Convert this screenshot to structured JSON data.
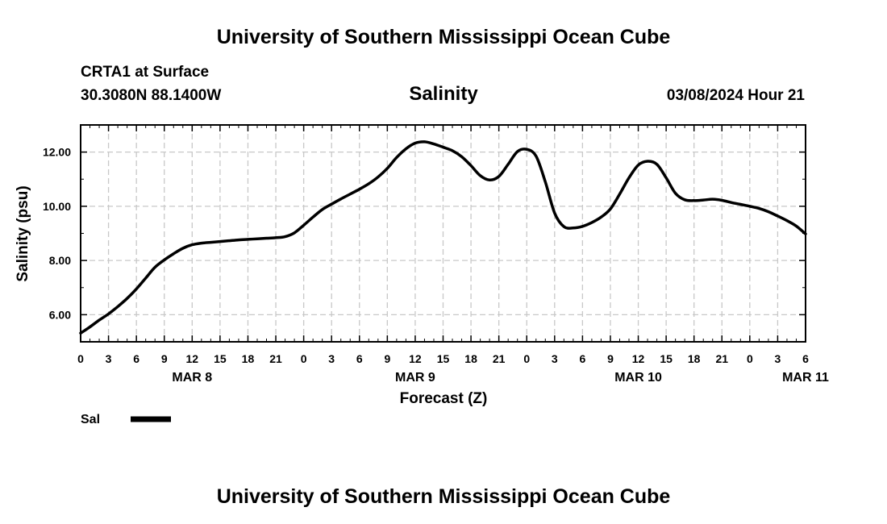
{
  "header": {
    "title": "University of Southern Mississippi Ocean Cube",
    "station": "CRTA1 at Surface",
    "coordinates": "30.3080N  88.1400W",
    "variable": "Salinity",
    "timestamp": "03/08/2024 Hour 21"
  },
  "footer": {
    "title": "University of Southern Mississippi Ocean Cube"
  },
  "legend": {
    "label": "Sal",
    "color": "#000000"
  },
  "colors": {
    "line": "#000000",
    "grid": "#c8c8c8",
    "frame": "#000000"
  },
  "chart_data": {
    "type": "line",
    "title": "Salinity",
    "xlabel": "Forecast (Z)",
    "ylabel": "Salinity (psu)",
    "xlim": [
      0,
      78
    ],
    "ylim": [
      5.0,
      13.0
    ],
    "x_unit": "hours since 2024-03-08 00Z",
    "x_tick_values": [
      0,
      3,
      6,
      9,
      12,
      15,
      18,
      21,
      24,
      27,
      30,
      33,
      36,
      39,
      42,
      45,
      48,
      51,
      54,
      57,
      60,
      63,
      66,
      69,
      72,
      75,
      78
    ],
    "x_tick_labels": [
      "0",
      "3",
      "6",
      "9",
      "12",
      "15",
      "18",
      "21",
      "0",
      "3",
      "6",
      "9",
      "12",
      "15",
      "18",
      "21",
      "0",
      "3",
      "6",
      "9",
      "12",
      "15",
      "18",
      "21",
      "0",
      "3",
      "6"
    ],
    "date_labels": [
      {
        "x": 12,
        "label": "MAR 8"
      },
      {
        "x": 36,
        "label": "MAR 9"
      },
      {
        "x": 60,
        "label": "MAR 10"
      },
      {
        "x": 78,
        "label": "MAR 11"
      }
    ],
    "y_tick_values": [
      6.0,
      8.0,
      10.0,
      12.0
    ],
    "y_tick_labels": [
      "6.00",
      "8.00",
      "10.00",
      "12.00"
    ],
    "grid": true,
    "series": [
      {
        "name": "Sal",
        "x": [
          0,
          1,
          2,
          3,
          4,
          5,
          6,
          7,
          8,
          9,
          10,
          11,
          12,
          13,
          14,
          15,
          16,
          17,
          18,
          19,
          20,
          21,
          22,
          23,
          24,
          25,
          26,
          27,
          28,
          29,
          30,
          31,
          32,
          33,
          34,
          35,
          36,
          37,
          38,
          39,
          40,
          41,
          42,
          43,
          44,
          45,
          46,
          47,
          48,
          49,
          50,
          51,
          52,
          53,
          54,
          55,
          56,
          57,
          58,
          59,
          60,
          61,
          62,
          63,
          64,
          65,
          66,
          67,
          68,
          69,
          70,
          71,
          72,
          73,
          74,
          75,
          76,
          77,
          78
        ],
        "values": [
          5.32,
          5.55,
          5.8,
          6.03,
          6.3,
          6.6,
          6.95,
          7.35,
          7.75,
          8.02,
          8.25,
          8.45,
          8.58,
          8.64,
          8.67,
          8.7,
          8.73,
          8.76,
          8.78,
          8.8,
          8.82,
          8.84,
          8.88,
          9.02,
          9.3,
          9.6,
          9.88,
          10.08,
          10.27,
          10.45,
          10.63,
          10.83,
          11.08,
          11.4,
          11.8,
          12.12,
          12.33,
          12.38,
          12.3,
          12.18,
          12.05,
          11.83,
          11.5,
          11.13,
          10.97,
          11.1,
          11.55,
          12.02,
          12.1,
          11.85,
          10.9,
          9.75,
          9.25,
          9.2,
          9.26,
          9.4,
          9.6,
          9.9,
          10.45,
          11.05,
          11.52,
          11.66,
          11.55,
          11.05,
          10.48,
          10.24,
          10.21,
          10.23,
          10.26,
          10.22,
          10.14,
          10.07,
          10.0,
          9.92,
          9.8,
          9.64,
          9.47,
          9.27,
          8.98
        ]
      }
    ]
  }
}
